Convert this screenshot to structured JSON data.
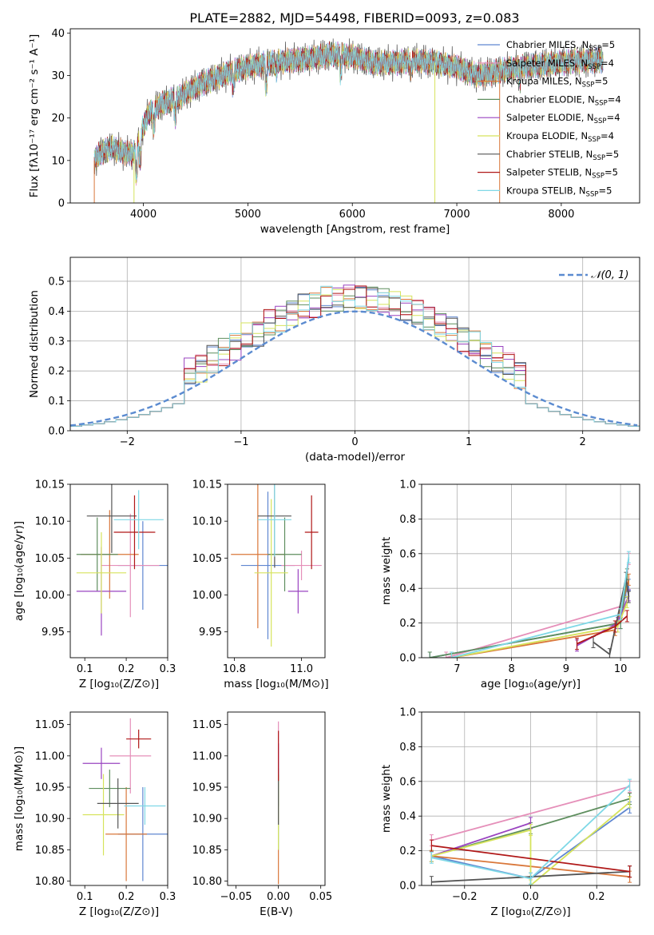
{
  "colors": {
    "Chabrier MILES": "#5f87d0",
    "Salpeter MILES": "#e58fb9",
    "Kroupa MILES": "#d9773a",
    "Chabrier ELODIE": "#5e8e5e",
    "Salpeter ELODIE": "#9a44c0",
    "Kroupa ELODIE": "#d6e35c",
    "Chabrier STELIB": "#555555",
    "Salpeter STELIB": "#b01818",
    "Kroupa STELIB": "#7fd8e6"
  },
  "chart_data": [
    {
      "id": "spectrum",
      "type": "line",
      "title": "PLATE=2882, MJD=54498, FIBERID=0093, z=0.083",
      "xlabel": "wavelength [Angstrom, rest frame]",
      "ylabel": "Flux [fλ10⁻¹⁷ erg cm⁻² s⁻¹ A⁻¹]",
      "xlim": [
        3300,
        8750
      ],
      "ylim": [
        0,
        41
      ],
      "xticks": [
        "4000",
        "5000",
        "6000",
        "7000",
        "8000"
      ],
      "yticks": [
        "0",
        "10",
        "20",
        "30",
        "40"
      ],
      "continuum": {
        "x": [
          3530,
          3600,
          3700,
          3800,
          3900,
          3950,
          4000,
          4050,
          4150,
          4250,
          4350,
          4450,
          4550,
          4650,
          4800,
          5000,
          5200,
          5400,
          5600,
          5800,
          6000,
          6200,
          6400,
          6600,
          6800,
          7000,
          7200,
          7400,
          7600,
          7800,
          8000,
          8200,
          8400
        ],
        "y": [
          10,
          12,
          13,
          12,
          11.5,
          14,
          18,
          21,
          23,
          24,
          25,
          26.5,
          28,
          29,
          30.5,
          32,
          33,
          33.5,
          34,
          35,
          34.5,
          33,
          33,
          33.5,
          33,
          32,
          30,
          31,
          32,
          32.5,
          33,
          33.5,
          33.5
        ]
      },
      "legend": [
        {
          "name": "Chabrier MILES",
          "nssp": "5"
        },
        {
          "name": "Salpeter MILES",
          "nssp": "4"
        },
        {
          "name": "Kroupa MILES",
          "nssp": "5"
        },
        {
          "name": "Chabrier ELODIE",
          "nssp": "4"
        },
        {
          "name": "Salpeter ELODIE",
          "nssp": "4"
        },
        {
          "name": "Kroupa ELODIE",
          "nssp": "4"
        },
        {
          "name": "Chabrier STELIB",
          "nssp": "5"
        },
        {
          "name": "Salpeter STELIB",
          "nssp": "5"
        },
        {
          "name": "Kroupa STELIB",
          "nssp": "5"
        }
      ]
    },
    {
      "id": "residuals",
      "type": "line",
      "xlabel": "(data-model)/error",
      "ylabel": "Normed distribution",
      "xlim": [
        -2.5,
        2.5
      ],
      "ylim": [
        0,
        0.58
      ],
      "grid": true,
      "xticks": [
        "−2",
        "−1",
        "0",
        "1",
        "2"
      ],
      "yticks": [
        "0.0",
        "0.1",
        "0.2",
        "0.3",
        "0.4",
        "0.5"
      ],
      "legend": "𝒩(0, 1)",
      "normal": {
        "mean": 0,
        "sigma": 1
      }
    },
    {
      "id": "age_vs_Z",
      "type": "scatter",
      "xlabel": "Z [log₁₀(Z/Z⊙)]",
      "ylabel": "age  [log₁₀(age/yr)]",
      "xlim": [
        0.065,
        0.3
      ],
      "ylim": [
        9.915,
        10.15
      ],
      "xticks": [
        "0.1",
        "0.2",
        "0.3"
      ],
      "yticks": [
        "9.95",
        "10.00",
        "10.05",
        "10.10",
        "10.15"
      ],
      "points": [
        {
          "x": 0.24,
          "y": 10.04,
          "xerr": 0.06,
          "yerr": 0.06,
          "c": "Chabrier MILES"
        },
        {
          "x": 0.21,
          "y": 10.04,
          "xerr": 0.07,
          "yerr": 0.07,
          "c": "Salpeter MILES"
        },
        {
          "x": 0.16,
          "y": 10.055,
          "xerr": 0.07,
          "yerr": 0.06,
          "c": "Kroupa MILES"
        },
        {
          "x": 0.13,
          "y": 10.055,
          "xerr": 0.05,
          "yerr": 0.05,
          "c": "Chabrier ELODIE"
        },
        {
          "x": 0.14,
          "y": 10.005,
          "xerr": 0.06,
          "yerr": 0.06,
          "c": "Salpeter ELODIE"
        },
        {
          "x": 0.14,
          "y": 10.03,
          "xerr": 0.06,
          "yerr": 0.055,
          "c": "Kroupa ELODIE"
        },
        {
          "x": 0.165,
          "y": 10.107,
          "xerr": 0.06,
          "yerr": 0.05,
          "c": "Chabrier STELIB"
        },
        {
          "x": 0.22,
          "y": 10.085,
          "xerr": 0.05,
          "yerr": 0.05,
          "c": "Salpeter STELIB"
        },
        {
          "x": 0.23,
          "y": 10.102,
          "xerr": 0.06,
          "yerr": 0.04,
          "c": "Kroupa STELIB"
        }
      ]
    },
    {
      "id": "age_vs_mass",
      "type": "scatter",
      "xlabel": "mass [log₁₀(M/M⊙)]",
      "xlim": [
        10.78,
        11.07
      ],
      "ylim": [
        9.915,
        10.15
      ],
      "xticks": [
        "10.8",
        "11.0"
      ],
      "yticks": [
        "9.95",
        "10.00",
        "10.05",
        "10.10",
        "10.15"
      ],
      "points": [
        {
          "x": 10.9,
          "y": 10.04,
          "xerr": 0.08,
          "yerr": 0.1,
          "c": "Chabrier MILES"
        },
        {
          "x": 11.0,
          "y": 10.04,
          "xerr": 0.06,
          "yerr": 0.02,
          "c": "Salpeter MILES"
        },
        {
          "x": 10.87,
          "y": 10.055,
          "xerr": 0.08,
          "yerr": 0.1,
          "c": "Kroupa MILES"
        },
        {
          "x": 10.95,
          "y": 10.055,
          "xerr": 0.05,
          "yerr": 0.05,
          "c": "Chabrier ELODIE"
        },
        {
          "x": 10.99,
          "y": 10.005,
          "xerr": 0.03,
          "yerr": 0.03,
          "c": "Salpeter ELODIE"
        },
        {
          "x": 10.91,
          "y": 10.03,
          "xerr": 0.05,
          "yerr": 0.1,
          "c": "Kroupa ELODIE"
        },
        {
          "x": 10.92,
          "y": 10.107,
          "xerr": 0.05,
          "yerr": 0.07,
          "c": "Chabrier STELIB"
        },
        {
          "x": 11.03,
          "y": 10.085,
          "xerr": 0.02,
          "yerr": 0.05,
          "c": "Salpeter STELIB"
        },
        {
          "x": 10.92,
          "y": 10.102,
          "xerr": 0.05,
          "yerr": 0.05,
          "c": "Kroupa STELIB"
        }
      ]
    },
    {
      "id": "weight_vs_age",
      "type": "line",
      "xlabel": "age  [log₁₀(age/yr)]",
      "ylabel": "mass weight",
      "xlim": [
        6.35,
        10.35
      ],
      "ylim": [
        0,
        1
      ],
      "grid": true,
      "xticks": [
        "7",
        "8",
        "9",
        "10"
      ],
      "yticks": [
        "0.0",
        "0.2",
        "0.4",
        "0.6",
        "0.8",
        "1.0"
      ],
      "series": [
        {
          "c": "Chabrier MILES",
          "x": [
            6.5,
            10.0,
            10.1,
            10.15
          ],
          "y": [
            0.0,
            0.2,
            0.38,
            0.42
          ]
        },
        {
          "c": "Salpeter MILES",
          "x": [
            6.8,
            10.05,
            10.15
          ],
          "y": [
            0.0,
            0.3,
            0.57
          ]
        },
        {
          "c": "Kroupa MILES",
          "x": [
            6.9,
            9.9,
            10.15
          ],
          "y": [
            0.0,
            0.16,
            0.45
          ]
        },
        {
          "c": "Chabrier ELODIE",
          "x": [
            6.5,
            10.0,
            10.12
          ],
          "y": [
            0.0,
            0.2,
            0.48
          ]
        },
        {
          "c": "Salpeter ELODIE",
          "x": [
            9.2,
            9.95,
            10.15
          ],
          "y": [
            0.07,
            0.2,
            0.36
          ]
        },
        {
          "c": "Kroupa ELODIE",
          "x": [
            6.9,
            9.95,
            10.12
          ],
          "y": [
            0.0,
            0.18,
            0.32
          ]
        },
        {
          "c": "Chabrier STELIB",
          "x": [
            9.5,
            9.8,
            10.1,
            10.15
          ],
          "y": [
            0.09,
            0.02,
            0.46,
            0.35
          ]
        },
        {
          "c": "Salpeter STELIB",
          "x": [
            9.2,
            9.9,
            10.12
          ],
          "y": [
            0.08,
            0.18,
            0.24
          ]
        },
        {
          "c": "Kroupa STELIB",
          "x": [
            6.9,
            10.0,
            10.15
          ],
          "y": [
            0.0,
            0.25,
            0.58
          ]
        }
      ]
    },
    {
      "id": "mass_vs_Z",
      "type": "scatter",
      "xlabel": "Z [log₁₀(Z/Z⊙)]",
      "ylabel": "mass [log₁₀(M/M⊙)]",
      "xlim": [
        0.065,
        0.3
      ],
      "ylim": [
        10.793,
        11.07
      ],
      "xticks": [
        "0.1",
        "0.2",
        "0.3"
      ],
      "yticks": [
        "10.80",
        "10.85",
        "10.90",
        "10.95",
        "11.00",
        "11.05"
      ],
      "points": [
        {
          "x": 0.24,
          "y": 10.875,
          "xerr": 0.06,
          "yerr": 0.075,
          "c": "Chabrier MILES"
        },
        {
          "x": 0.21,
          "y": 11.0,
          "xerr": 0.05,
          "yerr": 0.06,
          "c": "Salpeter MILES"
        },
        {
          "x": 0.2,
          "y": 10.875,
          "xerr": 0.05,
          "yerr": 0.075,
          "c": "Kroupa MILES"
        },
        {
          "x": 0.16,
          "y": 10.948,
          "xerr": 0.05,
          "yerr": 0.03,
          "c": "Chabrier ELODIE"
        },
        {
          "x": 0.14,
          "y": 10.988,
          "xerr": 0.045,
          "yerr": 0.025,
          "c": "Salpeter ELODIE"
        },
        {
          "x": 0.145,
          "y": 10.906,
          "xerr": 0.05,
          "yerr": 0.065,
          "c": "Kroupa ELODIE"
        },
        {
          "x": 0.18,
          "y": 10.924,
          "xerr": 0.05,
          "yerr": 0.04,
          "c": "Chabrier STELIB"
        },
        {
          "x": 0.23,
          "y": 11.027,
          "xerr": 0.03,
          "yerr": 0.015,
          "c": "Salpeter STELIB"
        },
        {
          "x": 0.245,
          "y": 10.92,
          "xerr": 0.05,
          "yerr": 0.03,
          "c": "Kroupa STELIB"
        }
      ]
    },
    {
      "id": "mass_vs_ebv",
      "type": "scatter",
      "xlabel": "E(B-V)",
      "xlim": [
        -0.06,
        0.055
      ],
      "ylim": [
        10.793,
        11.07
      ],
      "xticks": [
        "−0.05",
        "0.00",
        "0.05"
      ],
      "yticks": [
        "10.80",
        "10.85",
        "10.90",
        "10.95",
        "11.00",
        "11.05"
      ],
      "points": [
        {
          "x": 0.0,
          "y": 10.87,
          "yerr": 0.075,
          "c": "Kroupa MILES"
        },
        {
          "x": 0.0,
          "y": 11.0,
          "yerr": 0.055,
          "c": "Salpeter MILES"
        },
        {
          "x": 0.0,
          "y": 10.92,
          "yerr": 0.07,
          "c": "Kroupa STELIB"
        },
        {
          "x": 0.0,
          "y": 10.95,
          "yerr": 0.03,
          "c": "Chabrier ELODIE"
        },
        {
          "x": 0.0,
          "y": 10.99,
          "yerr": 0.03,
          "c": "Salpeter ELODIE"
        },
        {
          "x": 0.0,
          "y": 10.91,
          "yerr": 0.06,
          "c": "Kroupa ELODIE"
        },
        {
          "x": 0.0,
          "y": 10.93,
          "yerr": 0.04,
          "c": "Chabrier STELIB"
        },
        {
          "x": 0.0,
          "y": 11.0,
          "yerr": 0.04,
          "c": "Salpeter STELIB"
        }
      ]
    },
    {
      "id": "weight_vs_Z",
      "type": "line",
      "xlabel": "Z [log₁₀(Z/Z⊙)]",
      "ylabel": "mass weight",
      "xlim": [
        -0.33,
        0.33
      ],
      "ylim": [
        0,
        1
      ],
      "grid": true,
      "xticks": [
        "−0.2",
        "0.0",
        "0.2"
      ],
      "yticks": [
        "0.0",
        "0.2",
        "0.4",
        "0.6",
        "0.8",
        "1.0"
      ],
      "series": [
        {
          "c": "Chabrier MILES",
          "x": [
            -0.3,
            0.0,
            0.3
          ],
          "y": [
            0.17,
            0.04,
            0.45
          ]
        },
        {
          "c": "Salpeter MILES",
          "x": [
            -0.3,
            0.3
          ],
          "y": [
            0.26,
            0.57
          ]
        },
        {
          "c": "Kroupa MILES",
          "x": [
            -0.3,
            0.3
          ],
          "y": [
            0.17,
            0.05
          ]
        },
        {
          "c": "Chabrier ELODIE",
          "x": [
            -0.3,
            0.0,
            0.3
          ],
          "y": [
            0.17,
            0.33,
            0.5
          ]
        },
        {
          "c": "Salpeter ELODIE",
          "x": [
            -0.3,
            0.0
          ],
          "y": [
            0.17,
            0.36
          ]
        },
        {
          "c": "Kroupa ELODIE",
          "x": [
            -0.3,
            0.0,
            0.0,
            0.3
          ],
          "y": [
            0.17,
            0.32,
            0.0,
            0.48
          ]
        },
        {
          "c": "Chabrier STELIB",
          "x": [
            -0.3,
            0.3
          ],
          "y": [
            0.02,
            0.08
          ]
        },
        {
          "c": "Salpeter STELIB",
          "x": [
            -0.3,
            0.3
          ],
          "y": [
            0.23,
            0.08
          ]
        },
        {
          "c": "Kroupa STELIB",
          "x": [
            -0.3,
            0.0,
            0.3
          ],
          "y": [
            0.16,
            0.04,
            0.58
          ]
        }
      ]
    }
  ]
}
